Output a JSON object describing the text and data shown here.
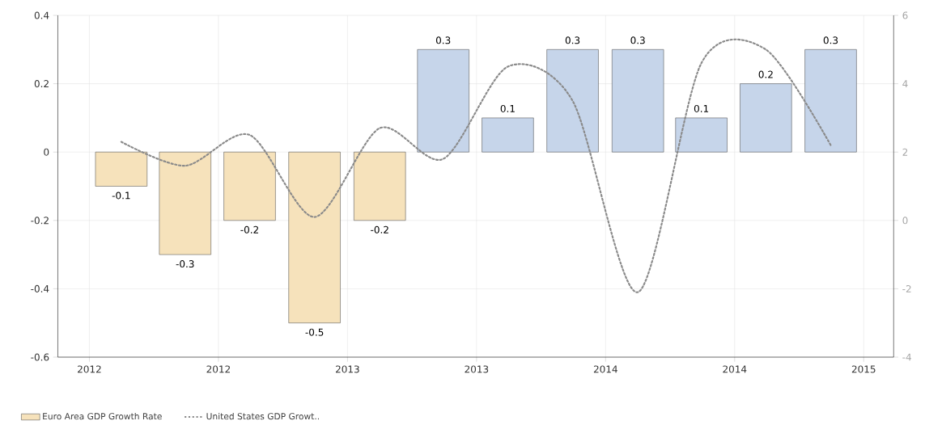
{
  "chart_data": {
    "type": "bar",
    "x": [
      "2012-02-15",
      "2012-05-15",
      "2012-08-15",
      "2012-11-15",
      "2013-02-15",
      "2013-05-15",
      "2013-08-15",
      "2013-11-15",
      "2014-02-15",
      "2014-05-15",
      "2014-08-15",
      "2014-11-15"
    ],
    "series": [
      {
        "name": "Euro Area GDP Growth Rate",
        "values": [
          -0.1,
          -0.3,
          -0.2,
          -0.5,
          -0.2,
          0.3,
          0.1,
          0.3,
          0.3,
          0.1,
          0.2,
          0.3
        ],
        "value_labels": [
          "-0.1",
          "-0.3",
          "-0.2",
          "-0.5",
          "-0.2",
          "0.3",
          "0.1",
          "0.3",
          "0.3",
          "0.1",
          "0.2",
          "0.3"
        ],
        "colors": [
          "#f6e2bb",
          "#f6e2bb",
          "#f6e2bb",
          "#f6e2bb",
          "#f6e2bb",
          "#c6d5ea",
          "#c6d5ea",
          "#c6d5ea",
          "#c6d5ea",
          "#c6d5ea",
          "#c6d5ea",
          "#c6d5ea"
        ]
      },
      {
        "name": "United States GDP Growt..",
        "type": "line",
        "axis": "y2",
        "color": "#8a8a8a",
        "line_style": "dotted",
        "values": [
          2.3,
          1.6,
          2.5,
          0.1,
          2.7,
          1.8,
          4.5,
          3.5,
          -2.1,
          4.6,
          5.0,
          2.2
        ]
      }
    ],
    "xlim": [
      "2011-11-17",
      "2015-02-12"
    ],
    "xticks": [
      {
        "value": "2012-01-01",
        "label": "2012"
      },
      {
        "value": "2012-07-01",
        "label": "2012"
      },
      {
        "value": "2013-01-01",
        "label": "2013"
      },
      {
        "value": "2013-07-01",
        "label": "2013"
      },
      {
        "value": "2014-01-01",
        "label": "2014"
      },
      {
        "value": "2014-07-01",
        "label": "2014"
      },
      {
        "value": "2015-01-01",
        "label": "2015"
      }
    ],
    "ylim": [
      -0.6,
      0.4
    ],
    "yticks": [
      -0.6,
      -0.4,
      -0.2,
      0,
      0.2,
      0.4
    ],
    "y2lim": [
      -4,
      6
    ],
    "y2ticks": [
      -4,
      -2,
      0,
      2,
      4,
      6
    ],
    "grid": true,
    "legend": "bottom"
  }
}
